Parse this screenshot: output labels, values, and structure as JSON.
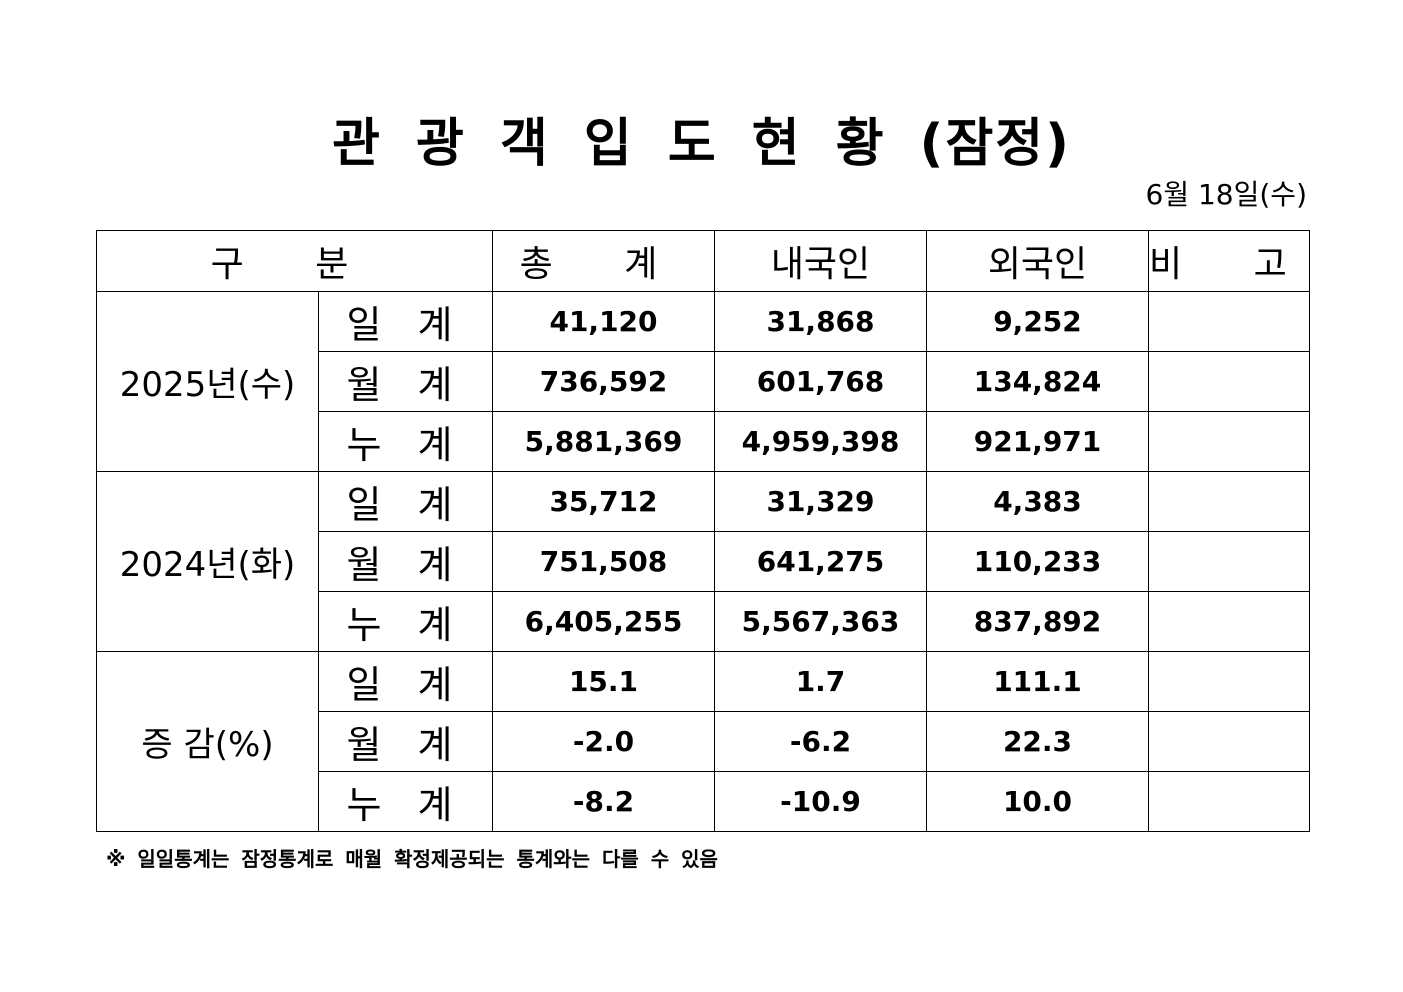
{
  "title": "관 광 객 입 도 현 황 (잠정)",
  "date": "6월  18일(수)",
  "header": {
    "category": "구 분",
    "total": "총 계",
    "domestic": "내국인",
    "foreign": "외국인",
    "remarks": "비 고"
  },
  "groups": [
    {
      "label": "2025년(수)",
      "rows": [
        {
          "type": "일 계",
          "total": "41,120",
          "domestic": "31,868",
          "foreign": "9,252",
          "remarks": ""
        },
        {
          "type": "월 계",
          "total": "736,592",
          "domestic": "601,768",
          "foreign": "134,824",
          "remarks": ""
        },
        {
          "type": "누 계",
          "total": "5,881,369",
          "domestic": "4,959,398",
          "foreign": "921,971",
          "remarks": ""
        }
      ]
    },
    {
      "label": "2024년(화)",
      "rows": [
        {
          "type": "일 계",
          "total": "35,712",
          "domestic": "31,329",
          "foreign": "4,383",
          "remarks": ""
        },
        {
          "type": "월 계",
          "total": "751,508",
          "domestic": "641,275",
          "foreign": "110,233",
          "remarks": ""
        },
        {
          "type": "누 계",
          "total": "6,405,255",
          "domestic": "5,567,363",
          "foreign": "837,892",
          "remarks": ""
        }
      ]
    },
    {
      "label": "증 감(%)",
      "rows": [
        {
          "type": "일 계",
          "total": "15.1",
          "domestic": "1.7",
          "foreign": "111.1",
          "remarks": ""
        },
        {
          "type": "월 계",
          "total": "-2.0",
          "domestic": "-6.2",
          "foreign": "22.3",
          "remarks": ""
        },
        {
          "type": "누 계",
          "total": "-8.2",
          "domestic": "-10.9",
          "foreign": "10.0",
          "remarks": ""
        }
      ]
    }
  ],
  "footnote": "※ 일일통계는 잠정통계로 매월 확정제공되는 통계와는 다를 수 있음"
}
